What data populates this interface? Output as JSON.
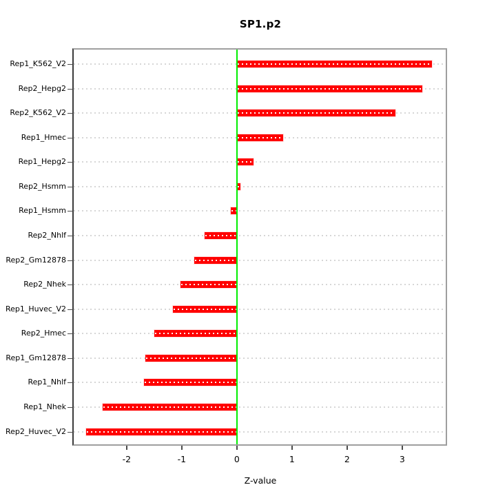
{
  "chart_data": {
    "type": "bar",
    "orientation": "horizontal",
    "title": "SP1.p2",
    "xlabel": "Z-value",
    "categories": [
      "Rep1_K562_V2",
      "Rep2_Hepg2",
      "Rep2_K562_V2",
      "Rep1_Hmec",
      "Rep1_Hepg2",
      "Rep2_Hsmm",
      "Rep1_Hsmm",
      "Rep2_Nhlf",
      "Rep2_Gm12878",
      "Rep2_Nhek",
      "Rep1_Huvec_V2",
      "Rep2_Hmec",
      "Rep1_Gm12878",
      "Rep1_Nhlf",
      "Rep1_Nhek",
      "Rep2_Huvec_V2"
    ],
    "values": [
      3.54,
      3.36,
      2.88,
      0.84,
      0.3,
      0.06,
      -0.11,
      -0.59,
      -0.77,
      -1.02,
      -1.16,
      -1.5,
      -1.66,
      -1.68,
      -2.43,
      -2.73
    ],
    "xticks": [
      -2,
      -1,
      0,
      1,
      2,
      3
    ],
    "xlim": [
      -2.96,
      3.79
    ],
    "grid": "dotted horizontal line per category, on",
    "legend": "none",
    "zero_reference_line": 0,
    "colors": {
      "bar": "#ff0000",
      "bar_edge": "#ff8a8a",
      "bar_dots": "#ffffff",
      "zero_line": "#00ee00",
      "grid": "#d6d6d6",
      "box": "#9e9e9e",
      "axis_left": "#3a3a3a",
      "tick": "#4a4a4a",
      "text": "#000000",
      "background": "#ffffff"
    }
  }
}
